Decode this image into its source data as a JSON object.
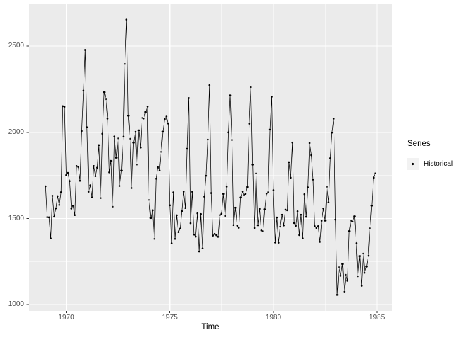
{
  "chart_data": {
    "type": "line",
    "title": "",
    "xlabel": "Time",
    "ylabel": "",
    "legend_title": "Series",
    "legend_position": "right",
    "grid": true,
    "marker": "point",
    "x_ticks": [
      1970,
      1975,
      1980,
      1985
    ],
    "y_ticks": [
      1000,
      1500,
      2000,
      2500
    ],
    "x_range": [
      1968.204,
      1985.713
    ],
    "y_range": [
      964,
      2747
    ],
    "series": [
      {
        "name": "Historical",
        "start_year": 1969,
        "frequency": 12,
        "values": [
          1687,
          1508,
          1507,
          1385,
          1632,
          1511,
          1559,
          1630,
          1579,
          1653,
          2152,
          2148,
          1752,
          1765,
          1717,
          1558,
          1575,
          1520,
          1805,
          1800,
          1719,
          2008,
          2242,
          2478,
          2030,
          1655,
          1693,
          1623,
          1805,
          1746,
          1795,
          1926,
          1619,
          1992,
          2233,
          2192,
          2080,
          1768,
          1835,
          1569,
          1976,
          1853,
          1965,
          1689,
          1778,
          1976,
          2397,
          2654,
          2097,
          1963,
          1677,
          1941,
          2003,
          1813,
          2012,
          1912,
          2084,
          2080,
          2118,
          2150,
          1608,
          1503,
          1548,
          1382,
          1731,
          1798,
          1779,
          1887,
          2004,
          2077,
          2092,
          2051,
          1577,
          1356,
          1652,
          1382,
          1519,
          1421,
          1442,
          1543,
          1656,
          1561,
          1905,
          2199,
          1473,
          1655,
          1407,
          1395,
          1530,
          1309,
          1526,
          1327,
          1627,
          1748,
          1958,
          2274,
          1648,
          1401,
          1411,
          1403,
          1394,
          1520,
          1528,
          1643,
          1515,
          1685,
          2000,
          2215,
          1956,
          1462,
          1563,
          1459,
          1446,
          1622,
          1657,
          1638,
          1643,
          1683,
          2050,
          2262,
          1813,
          1445,
          1762,
          1461,
          1556,
          1431,
          1427,
          1554,
          1645,
          1653,
          2016,
          2207,
          1665,
          1361,
          1506,
          1360,
          1453,
          1522,
          1460,
          1552,
          1548,
          1827,
          1737,
          1941,
          1474,
          1458,
          1542,
          1404,
          1522,
          1385,
          1641,
          1510,
          1681,
          1938,
          1868,
          1726,
          1456,
          1445,
          1456,
          1365,
          1487,
          1558,
          1488,
          1684,
          1594,
          1850,
          1998,
          2079,
          1494,
          1057,
          1218,
          1168,
          1236,
          1076,
          1174,
          1139,
          1427,
          1487,
          1483,
          1513,
          1357,
          1165,
          1282,
          1110,
          1297,
          1185,
          1222,
          1284,
          1444,
          1575,
          1737,
          1763
        ]
      }
    ],
    "colors": {
      "panel_bg": "#EBEBEB",
      "grid": "#FFFFFF",
      "series": "#000000",
      "axis_text": "#4D4D4D",
      "tick_mark": "#333333",
      "axis_title": "#000000",
      "legend_key_bg": "#F2F2F2"
    }
  },
  "legend": {
    "title": "Series",
    "entries": [
      {
        "label": "Historical",
        "key": "line-with-point"
      }
    ]
  }
}
